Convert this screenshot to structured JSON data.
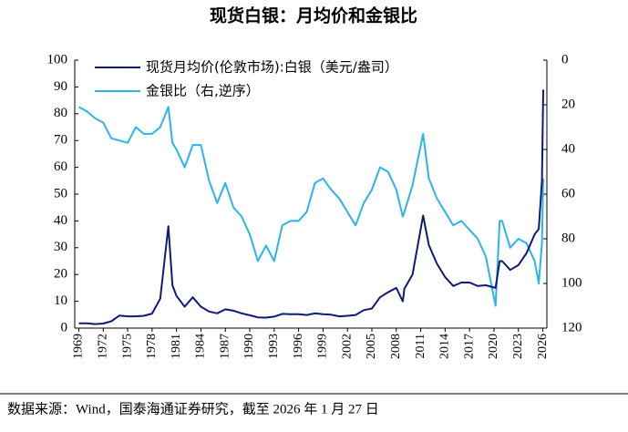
{
  "chart_data": {
    "type": "line",
    "title": "现货白银：月均价和金银比",
    "source": "数据来源：Wind，国泰海通证券研究，截至 2026 年 1 月 27 日",
    "x": [
      1969,
      1970,
      1971,
      1972,
      1973,
      1974,
      1975,
      1976,
      1977,
      1978,
      1979,
      1980.0,
      1980.5,
      1981,
      1982,
      1983,
      1984,
      1985,
      1986,
      1987,
      1988,
      1989,
      1990,
      1991,
      1992,
      1993,
      1994,
      1995,
      1996,
      1997,
      1998,
      1999,
      2000,
      2001,
      2002,
      2003,
      2004,
      2005,
      2006,
      2007,
      2008,
      2008.8,
      2009,
      2010,
      2011.3,
      2012,
      2013,
      2014,
      2015,
      2016,
      2017,
      2018,
      2019,
      2020.2,
      2020.7,
      2021,
      2022,
      2023,
      2024,
      2025,
      2025.5,
      2025.9,
      2026.05
    ],
    "xlim": [
      1968.5,
      2026.5
    ],
    "xticks": [
      1969,
      1972,
      1975,
      1978,
      1981,
      1984,
      1987,
      1990,
      1993,
      1996,
      1999,
      2002,
      2005,
      2008,
      2011,
      2014,
      2017,
      2020,
      2023,
      2026
    ],
    "ylim": [
      0,
      100
    ],
    "yticks": [
      0,
      10,
      20,
      30,
      40,
      50,
      60,
      70,
      80,
      90,
      100
    ],
    "y2lim": [
      0,
      120
    ],
    "y2ticks": [
      0,
      20,
      40,
      60,
      80,
      100,
      120
    ],
    "y2_inverted": true,
    "grid": false,
    "legend": "top-left",
    "series": [
      {
        "name": "现货月均价(伦敦市场):白银（美元/盎司）",
        "color": "#0f1a78",
        "values": [
          1.8,
          1.8,
          1.5,
          1.7,
          2.6,
          4.7,
          4.4,
          4.4,
          4.6,
          5.4,
          11,
          38,
          16,
          12,
          8,
          11.5,
          8,
          6.2,
          5.5,
          7,
          6.5,
          5.5,
          4.8,
          4,
          3.9,
          4.3,
          5.3,
          5.2,
          5.2,
          4.9,
          5.5,
          5.2,
          5,
          4.4,
          4.6,
          4.9,
          6.7,
          7.3,
          11.5,
          13.4,
          15,
          10,
          14.7,
          20,
          42,
          31,
          24,
          19,
          15.7,
          17,
          17,
          15.7,
          16,
          15,
          25,
          25,
          21.7,
          23.5,
          28,
          35,
          37,
          55,
          89
        ]
      },
      {
        "name": "金银比（右,逆序）",
        "color": "#2ab4ea",
        "axis": "y2",
        "values": [
          21,
          23,
          26,
          28,
          35,
          36,
          37,
          30,
          33,
          33,
          30,
          21,
          37,
          40,
          48,
          38,
          38,
          54,
          64,
          55,
          66,
          70,
          78,
          90,
          83,
          90,
          74,
          72,
          72,
          68,
          55,
          53,
          58,
          62,
          68,
          74,
          64,
          58,
          48,
          50,
          58,
          70,
          68,
          56,
          33,
          53,
          62,
          68,
          74,
          72,
          76,
          80,
          88,
          110,
          72,
          72,
          84,
          80,
          82,
          90,
          100,
          82,
          53
        ]
      }
    ]
  }
}
